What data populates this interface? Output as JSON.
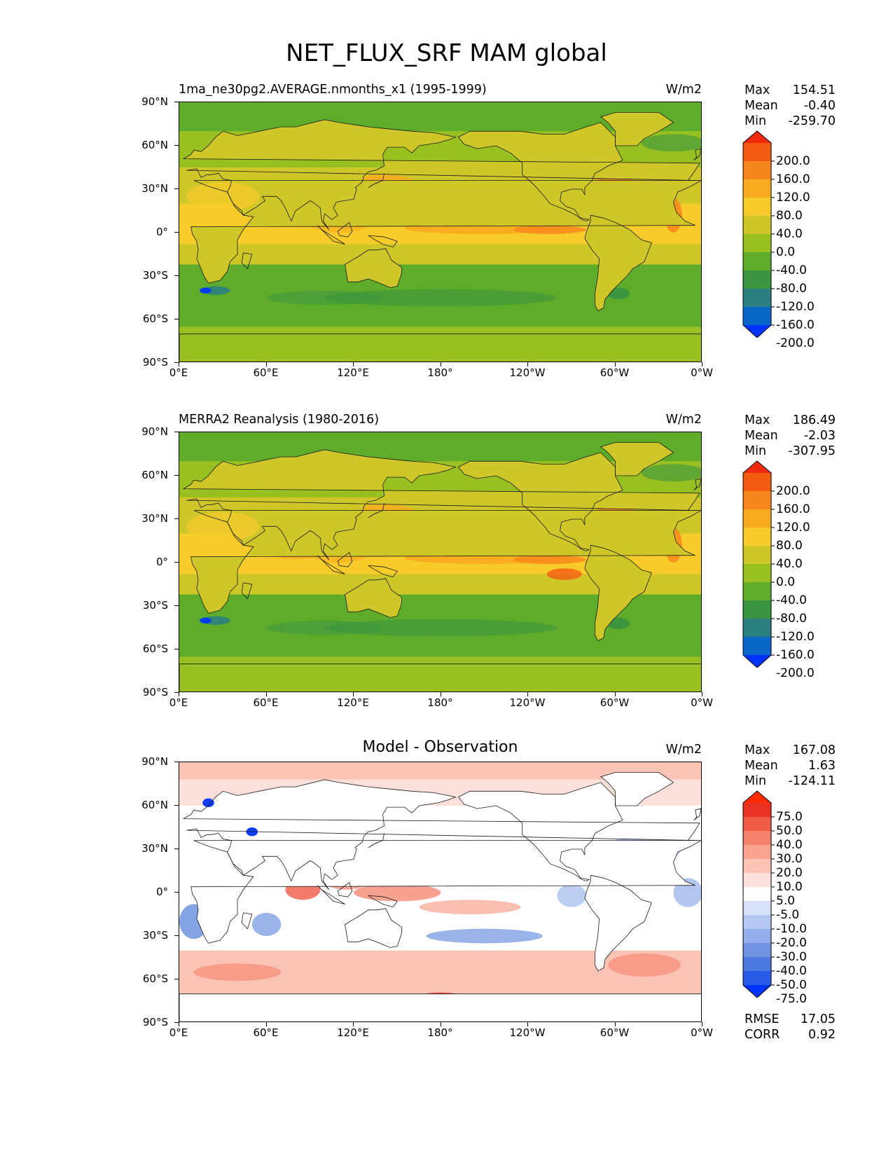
{
  "figure_title": "NET_FLUX_SRF MAM global",
  "colors": {
    "abs_scale": [
      "#0033ff",
      "#0a66c8",
      "#2b7f80",
      "#3a9440",
      "#5fac2a",
      "#98c020",
      "#cfc62a",
      "#f7cc2a",
      "#f8aa1e",
      "#f7861c",
      "#f45b12",
      "#f02a0e"
    ],
    "diff_scale": [
      "#0033ff",
      "#2a5ae8",
      "#4b79e0",
      "#6f93e0",
      "#93aeea",
      "#b5c7f2",
      "#d6e0f8",
      "#ffffff",
      "#fde0da",
      "#fbc3b5",
      "#f8a390",
      "#f5826c",
      "#f05a46",
      "#ea3224",
      "#ff2a00"
    ]
  },
  "chart_data": [
    {
      "type": "heatmap",
      "subtitle": "1ma_ne30pg2.AVERAGE.nmonths_x1 (1995-1999)",
      "units": "W/m2",
      "stats": {
        "max_label": "Max",
        "max": "154.51",
        "mean_label": "Mean",
        "mean": "-0.40",
        "min_label": "Min",
        "min": "-259.70"
      },
      "colorbar_levels": [
        "200.0",
        "160.0",
        "120.0",
        "80.0",
        "40.0",
        "0.0",
        "-40.0",
        "-80.0",
        "-120.0",
        "-160.0",
        "-200.0"
      ],
      "y_ticks": [
        "90°N",
        "60°N",
        "30°N",
        "0°",
        "30°S",
        "60°S",
        "90°S"
      ],
      "x_ticks": [
        "0°E",
        "60°E",
        "120°E",
        "180°",
        "120°W",
        "60°W",
        "0°W"
      ],
      "xlim": [
        0,
        360
      ],
      "ylim": [
        -90,
        90
      ]
    },
    {
      "type": "heatmap",
      "subtitle": "MERRA2 Reanalysis (1980-2016)",
      "units": "W/m2",
      "stats": {
        "max_label": "Max",
        "max": "186.49",
        "mean_label": "Mean",
        "mean": "-2.03",
        "min_label": "Min",
        "min": "-307.95"
      },
      "colorbar_levels": [
        "200.0",
        "160.0",
        "120.0",
        "80.0",
        "40.0",
        "0.0",
        "-40.0",
        "-80.0",
        "-120.0",
        "-160.0",
        "-200.0"
      ],
      "y_ticks": [
        "90°N",
        "60°N",
        "30°N",
        "0°",
        "30°S",
        "60°S",
        "90°S"
      ],
      "x_ticks": [
        "0°E",
        "60°E",
        "120°E",
        "180°",
        "120°W",
        "60°W",
        "0°W"
      ],
      "xlim": [
        0,
        360
      ],
      "ylim": [
        -90,
        90
      ]
    },
    {
      "type": "heatmap",
      "subtitle": "Model - Observation",
      "units": "W/m2",
      "stats": {
        "max_label": "Max",
        "max": "167.08",
        "mean_label": "Mean",
        "mean": "1.63",
        "min_label": "Min",
        "min": "-124.11"
      },
      "colorbar_levels": [
        "75.0",
        "50.0",
        "40.0",
        "30.0",
        "20.0",
        "10.0",
        "5.0",
        "-5.0",
        "-10.0",
        "-20.0",
        "-30.0",
        "-40.0",
        "-50.0",
        "-75.0"
      ],
      "extra": {
        "rmse_label": "RMSE",
        "rmse": "17.05",
        "corr_label": "CORR",
        "corr": "0.92"
      },
      "y_ticks": [
        "90°N",
        "60°N",
        "30°N",
        "0°",
        "30°S",
        "60°S",
        "90°S"
      ],
      "x_ticks": [
        "0°E",
        "60°E",
        "120°E",
        "180°",
        "120°W",
        "60°W",
        "0°W"
      ],
      "xlim": [
        0,
        360
      ],
      "ylim": [
        -90,
        90
      ]
    }
  ]
}
